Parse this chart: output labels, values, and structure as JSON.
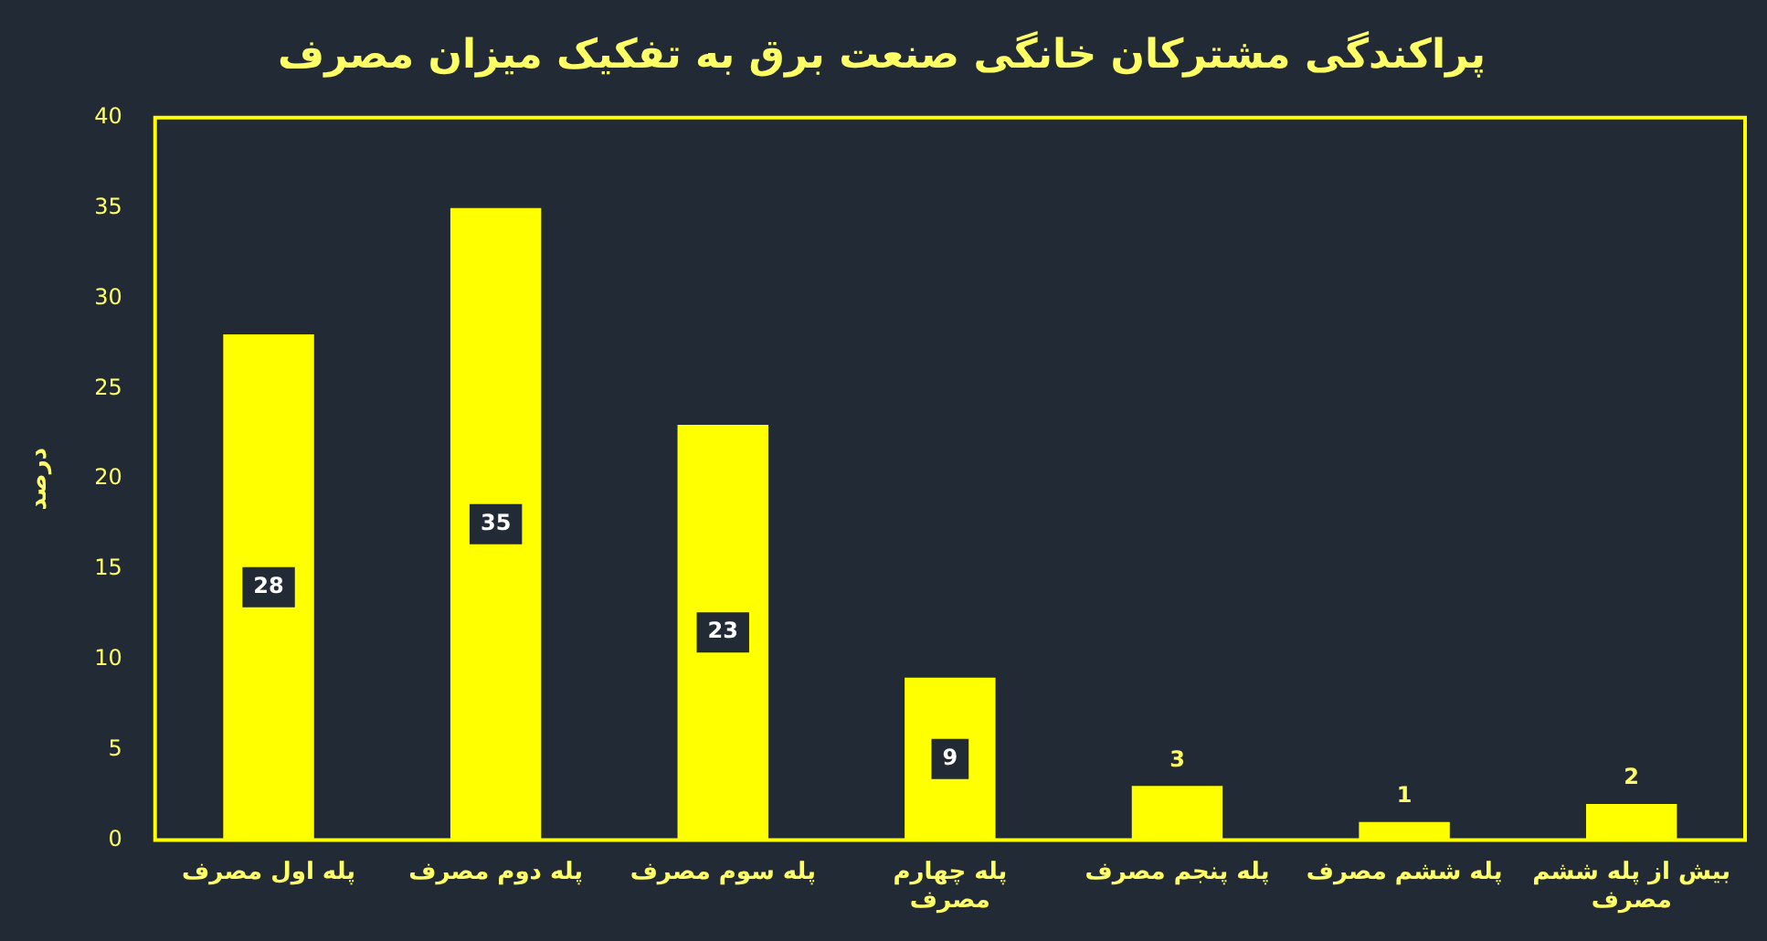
{
  "chart_data": {
    "type": "bar",
    "title": "پراکندگی مشترکان خانگی صنعت برق به تفکیک میزان مصرف",
    "ylabel": "درصد",
    "categories": [
      "پله اول مصرف",
      "پله دوم مصرف",
      "پله سوم مصرف",
      "پله چهارم مصرف",
      "پله پنجم مصرف",
      "پله ششم مصرف",
      "بیش از پله ششم مصرف"
    ],
    "values": [
      28,
      35,
      23,
      9,
      3,
      1,
      2
    ],
    "color": "#ffff00",
    "ylim": [
      0,
      40
    ],
    "yticks": [
      0,
      5,
      10,
      15,
      20,
      25,
      30,
      35,
      40
    ],
    "grid": false,
    "legend": false,
    "data_labels": true
  }
}
